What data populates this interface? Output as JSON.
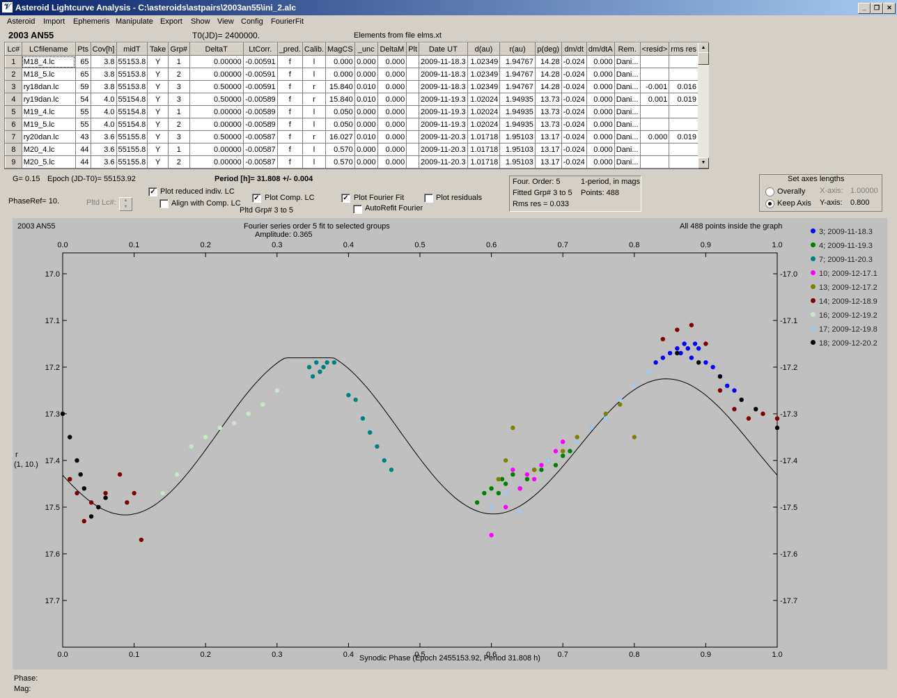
{
  "window": {
    "title": "Asteroid Lightcurve Analysis - C:\\asteroids\\astpairs\\2003an55\\ini_2.alc",
    "icon": "app-icon"
  },
  "menu": [
    "Asteroid",
    "Import",
    "Ephemeris",
    "Manipulate",
    "Export",
    "Show",
    "View",
    "Config",
    "FourierFit"
  ],
  "header": {
    "object": "2003 AN55",
    "t0": "T0(JD)= 2400000.",
    "elements": "Elements from file elms.xt"
  },
  "table": {
    "columns": [
      "Lc#",
      "LCfilename",
      "Pts",
      "Cov[h]",
      "midT",
      "Take",
      "Grp#",
      "DeltaT",
      "LtCorr.",
      "_pred.",
      "Calib.",
      "MagCS",
      "_unc",
      "DeltaM",
      "Plt",
      "Date UT",
      "d(au)",
      "r(au)",
      "p(deg)",
      "dm/dt",
      "dm/dtA",
      "Rem.",
      "<resid>",
      "rms res"
    ],
    "rows": [
      [
        "1",
        "M18_4.lc",
        "65",
        "3.8",
        "55153.8",
        "Y",
        "1",
        "0.00000",
        "-0.00591",
        "f",
        "l",
        "0.000",
        "0.000",
        "0.000",
        "",
        "2009-11-18.3",
        "1.02349",
        "1.94767",
        "14.28",
        "-0.024",
        "0.000",
        "Dani...",
        "",
        ""
      ],
      [
        "2",
        "M18_5.lc",
        "65",
        "3.8",
        "55153.8",
        "Y",
        "2",
        "0.00000",
        "-0.00591",
        "f",
        "l",
        "0.000",
        "0.000",
        "0.000",
        "",
        "2009-11-18.3",
        "1.02349",
        "1.94767",
        "14.28",
        "-0.024",
        "0.000",
        "Dani...",
        "",
        ""
      ],
      [
        "3",
        "ry18dan.lc",
        "59",
        "3.8",
        "55153.8",
        "Y",
        "3",
        "0.50000",
        "-0.00591",
        "f",
        "r",
        "15.840",
        "0.010",
        "0.000",
        "",
        "2009-11-18.3",
        "1.02349",
        "1.94767",
        "14.28",
        "-0.024",
        "0.000",
        "Dani...",
        "-0.001",
        "0.016"
      ],
      [
        "4",
        "ry19dan.lc",
        "54",
        "4.0",
        "55154.8",
        "Y",
        "3",
        "0.50000",
        "-0.00589",
        "f",
        "r",
        "15.840",
        "0.010",
        "0.000",
        "",
        "2009-11-19.3",
        "1.02024",
        "1.94935",
        "13.73",
        "-0.024",
        "0.000",
        "Dani...",
        "0.001",
        "0.019"
      ],
      [
        "5",
        "M19_4.lc",
        "55",
        "4.0",
        "55154.8",
        "Y",
        "1",
        "0.00000",
        "-0.00589",
        "f",
        "l",
        "0.050",
        "0.000",
        "0.000",
        "",
        "2009-11-19.3",
        "1.02024",
        "1.94935",
        "13.73",
        "-0.024",
        "0.000",
        "Dani...",
        "",
        ""
      ],
      [
        "6",
        "M19_5.lc",
        "55",
        "4.0",
        "55154.8",
        "Y",
        "2",
        "0.00000",
        "-0.00589",
        "f",
        "l",
        "0.050",
        "0.000",
        "0.000",
        "",
        "2009-11-19.3",
        "1.02024",
        "1.94935",
        "13.73",
        "-0.024",
        "0.000",
        "Dani...",
        "",
        ""
      ],
      [
        "7",
        "ry20dan.lc",
        "43",
        "3.6",
        "55155.8",
        "Y",
        "3",
        "0.50000",
        "-0.00587",
        "f",
        "r",
        "16.027",
        "0.010",
        "0.000",
        "",
        "2009-11-20.3",
        "1.01718",
        "1.95103",
        "13.17",
        "-0.024",
        "0.000",
        "Dani...",
        "0.000",
        "0.019"
      ],
      [
        "8",
        "M20_4.lc",
        "44",
        "3.6",
        "55155.8",
        "Y",
        "1",
        "0.00000",
        "-0.00587",
        "f",
        "l",
        "0.570",
        "0.000",
        "0.000",
        "",
        "2009-11-20.3",
        "1.01718",
        "1.95103",
        "13.17",
        "-0.024",
        "0.000",
        "Dani...",
        "",
        ""
      ],
      [
        "9",
        "M20_5.lc",
        "44",
        "3.6",
        "55155.8",
        "Y",
        "2",
        "0.00000",
        "-0.00587",
        "f",
        "l",
        "0.570",
        "0.000",
        "0.000",
        "",
        "2009-11-20.3",
        "1.01718",
        "1.95103",
        "13.17",
        "-0.024",
        "0.000",
        "Dani...",
        "",
        ""
      ]
    ]
  },
  "controls": {
    "g": "G= 0.15",
    "epoch": "Epoch (JD-T0)= 55153.92",
    "period": "Period [h]= 31.808 +/- 0.004",
    "phaseref": "PhaseRef= 10.",
    "pltd_lc": "Pltd Lc#:",
    "plot_reduced": "Plot reduced indiv. LC",
    "align": "Align with Comp. LC",
    "plot_comp": "Plot Comp. LC",
    "pltd_grp": "Pltd Grp#  3   to   5",
    "plot_fourier": "Plot Fourier Fit",
    "autorefit": "AutoRefit Fourier",
    "plot_residuals": "Plot residuals",
    "four_order": "Four. Order:  5",
    "one_period": "1-period, in mags",
    "fitted_grp": "Fitted Grp# 3 to 5",
    "points": "Points: 488",
    "rms": "Rms res      = 0.033",
    "axes_title": "Set axes lengths",
    "overally": "Overally",
    "keep_axis": "Keep Axis",
    "xaxis_lbl": "X-axis:",
    "xaxis_val": "1.00000",
    "yaxis_lbl": "Y-axis:",
    "yaxis_val": "0.800"
  },
  "plot": {
    "name": "2003 AN55",
    "title": "Fourier series order 5 fit to selected groups",
    "amplitude": "Amplitude: 0.365",
    "note": "All 488 points inside the graph",
    "ylabel_line1": "r",
    "ylabel_line2": "(1, 10.)",
    "xlabel": "Synodic Phase (Epoch 2455153.92, Period 31.808 h)"
  },
  "chart_data": {
    "type": "scatter",
    "xlim": [
      0,
      1.0
    ],
    "ylim": [
      17.7,
      17.0
    ],
    "xticks": [
      "0.0",
      "0.1",
      "0.2",
      "0.3",
      "0.4",
      "0.5",
      "0.6",
      "0.7",
      "0.8",
      "0.9",
      "1.0"
    ],
    "yticks": [
      "17.0",
      "17.1",
      "17.2",
      "17.3",
      "17.4",
      "17.5",
      "17.6",
      "17.7"
    ],
    "series": [
      {
        "name": "3; 2009-11-18.3",
        "color": "#0000ff",
        "x": [
          0.83,
          0.84,
          0.85,
          0.86,
          0.865,
          0.87,
          0.875,
          0.88,
          0.885,
          0.89,
          0.9,
          0.91,
          0.92,
          0.93,
          0.94
        ],
        "y": [
          17.19,
          17.18,
          17.17,
          17.16,
          17.17,
          17.15,
          17.16,
          17.18,
          17.15,
          17.16,
          17.19,
          17.2,
          17.22,
          17.24,
          17.25
        ]
      },
      {
        "name": "4; 2009-11-19.3",
        "color": "#008000",
        "x": [
          0.58,
          0.59,
          0.6,
          0.61,
          0.615,
          0.62,
          0.63,
          0.64,
          0.65,
          0.66,
          0.67,
          0.68,
          0.69,
          0.7,
          0.71
        ],
        "y": [
          17.49,
          17.47,
          17.46,
          17.47,
          17.44,
          17.45,
          17.43,
          17.46,
          17.44,
          17.42,
          17.42,
          17.4,
          17.41,
          17.39,
          17.38
        ]
      },
      {
        "name": "7; 2009-11-20.3",
        "color": "#008080",
        "x": [
          0.345,
          0.35,
          0.355,
          0.36,
          0.365,
          0.37,
          0.38,
          0.4,
          0.41,
          0.42,
          0.43,
          0.44,
          0.45,
          0.46
        ],
        "y": [
          17.2,
          17.22,
          17.19,
          17.21,
          17.2,
          17.19,
          17.19,
          17.26,
          17.27,
          17.31,
          17.34,
          17.37,
          17.4,
          17.42
        ]
      },
      {
        "name": "10; 2009-12-17.1",
        "color": "#ff00ff",
        "x": [
          0.6,
          0.62,
          0.63,
          0.64,
          0.65,
          0.66,
          0.67,
          0.68,
          0.69,
          0.7
        ],
        "y": [
          17.56,
          17.5,
          17.42,
          17.46,
          17.43,
          17.44,
          17.41,
          17.4,
          17.38,
          17.36
        ]
      },
      {
        "name": "13; 2009-12-17.2",
        "color": "#808000",
        "x": [
          0.61,
          0.62,
          0.63,
          0.66,
          0.7,
          0.72,
          0.74,
          0.76,
          0.78,
          0.8
        ],
        "y": [
          17.44,
          17.4,
          17.33,
          17.42,
          17.38,
          17.35,
          17.33,
          17.3,
          17.28,
          17.35
        ]
      },
      {
        "name": "14; 2009-12-18.9",
        "color": "#800000",
        "x": [
          0.01,
          0.02,
          0.03,
          0.04,
          0.05,
          0.06,
          0.08,
          0.09,
          0.1,
          0.11,
          0.84,
          0.86,
          0.88,
          0.9,
          0.92,
          0.94,
          0.96,
          0.98,
          1.0
        ],
        "y": [
          17.44,
          17.47,
          17.53,
          17.49,
          17.5,
          17.47,
          17.43,
          17.49,
          17.47,
          17.57,
          17.14,
          17.12,
          17.11,
          17.15,
          17.25,
          17.29,
          17.31,
          17.3,
          17.31
        ]
      },
      {
        "name": "16; 2009-12-19.2",
        "color": "#c8e6c8",
        "x": [
          0.14,
          0.16,
          0.18,
          0.2,
          0.22,
          0.24,
          0.26,
          0.28,
          0.3
        ],
        "y": [
          17.47,
          17.43,
          17.37,
          17.35,
          17.33,
          17.32,
          17.3,
          17.28,
          17.25
        ]
      },
      {
        "name": "17; 2009-12-19.8",
        "color": "#a0c8f0",
        "x": [
          0.6,
          0.62,
          0.64,
          0.68,
          0.72,
          0.74,
          0.76,
          0.78,
          0.8,
          0.82
        ],
        "y": [
          17.5,
          17.47,
          17.51,
          17.4,
          17.36,
          17.33,
          17.31,
          17.27,
          17.24,
          17.21
        ]
      },
      {
        "name": "18; 2009-12-20.2",
        "color": "#000000",
        "x": [
          0.0,
          0.01,
          0.02,
          0.025,
          0.03,
          0.04,
          0.05,
          0.06,
          0.86,
          0.89,
          0.92,
          0.95,
          0.97,
          1.0
        ],
        "y": [
          17.3,
          17.35,
          17.4,
          17.43,
          17.46,
          17.52,
          17.5,
          17.48,
          17.17,
          17.19,
          17.22,
          17.27,
          17.29,
          17.33
        ]
      }
    ],
    "fit": {
      "name": "Fourier fit",
      "amplitude": 0.365
    }
  }
}
